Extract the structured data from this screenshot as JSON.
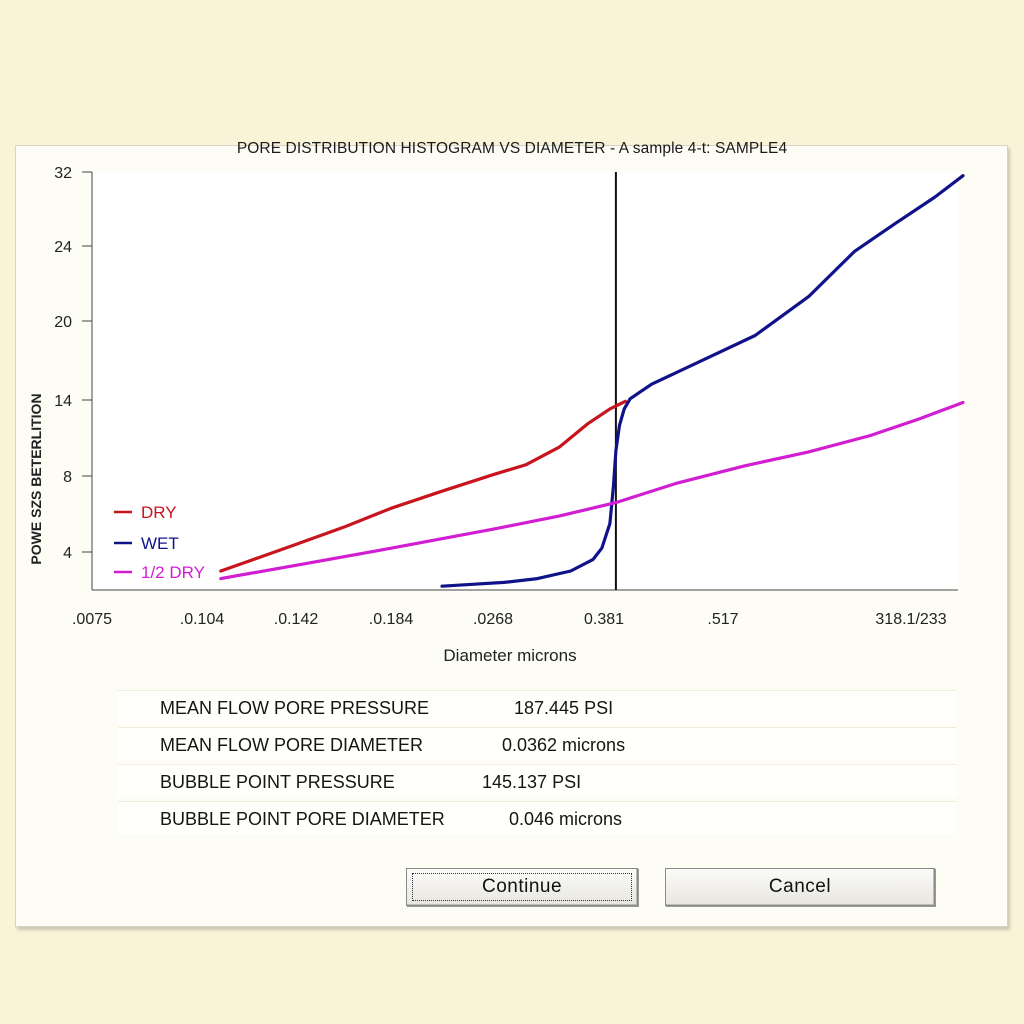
{
  "chart_data": {
    "type": "line",
    "title": "PORE DISTRIBUTION HISTOGRAM VS DIAMETER - A sample 4-t: SAMPLE4",
    "xlabel": "Diameter microns",
    "ylabel": "POWE SZS BETERLITION",
    "x_tick_labels": [
      ".0075",
      ".0.104",
      ".0.142",
      ".0.184",
      ".0268",
      "0.381",
      ".517",
      "318.1/233"
    ],
    "y_tick_labels": [
      "4",
      "8",
      "14",
      "20",
      "24",
      "32"
    ],
    "y_tick_values": [
      4,
      8,
      14,
      20,
      24,
      32
    ],
    "x_index_range": [
      0,
      7
    ],
    "ylim": [
      2,
      32
    ],
    "x_axis_note": "x positions are given as fractional index positions between the printed tick labels",
    "marker_line_x": 5.1,
    "legend": [
      {
        "name": "DRY",
        "color": "#c8141e"
      },
      {
        "name": "WET",
        "color": "#10128a"
      },
      {
        "name": "1/2 DRY",
        "color": "#d21ed2"
      }
    ],
    "series": [
      {
        "name": "DRY",
        "color": "#c8141e",
        "points": [
          [
            1.2,
            3.0
          ],
          [
            1.6,
            3.7
          ],
          [
            2.0,
            4.4
          ],
          [
            2.5,
            5.3
          ],
          [
            3.0,
            6.3
          ],
          [
            3.5,
            7.2
          ],
          [
            4.0,
            8.1
          ],
          [
            4.3,
            8.9
          ],
          [
            4.6,
            10.3
          ],
          [
            4.85,
            12.1
          ],
          [
            5.05,
            13.3
          ],
          [
            5.18,
            13.9
          ]
        ]
      },
      {
        "name": "WET",
        "color": "#10128a",
        "points": [
          [
            3.5,
            2.2
          ],
          [
            3.8,
            2.3
          ],
          [
            4.1,
            2.4
          ],
          [
            4.4,
            2.6
          ],
          [
            4.7,
            3.0
          ],
          [
            4.9,
            3.6
          ],
          [
            4.98,
            4.2
          ],
          [
            5.05,
            5.5
          ],
          [
            5.08,
            7.5
          ],
          [
            5.1,
            10.0
          ],
          [
            5.13,
            12.0
          ],
          [
            5.17,
            13.3
          ],
          [
            5.22,
            14.1
          ],
          [
            5.4,
            15.2
          ],
          [
            5.8,
            16.9
          ],
          [
            6.3,
            18.9
          ],
          [
            6.8,
            21.3
          ],
          [
            7.3,
            23.7
          ],
          [
            7.8,
            26.4
          ],
          [
            8.3,
            29.3
          ],
          [
            8.65,
            31.6
          ]
        ]
      },
      {
        "name": "1/2 DRY",
        "color": "#d21ed2",
        "points": [
          [
            1.2,
            2.6
          ],
          [
            2.0,
            3.3
          ],
          [
            3.0,
            4.2
          ],
          [
            4.0,
            5.2
          ],
          [
            4.6,
            5.9
          ],
          [
            5.1,
            6.6
          ],
          [
            5.6,
            7.6
          ],
          [
            6.2,
            8.8
          ],
          [
            6.8,
            9.9
          ],
          [
            7.5,
            11.2
          ],
          [
            8.1,
            12.5
          ],
          [
            8.65,
            13.8
          ]
        ]
      }
    ]
  },
  "stats": [
    {
      "label": "MEAN FLOW PORE PRESSURE",
      "value": "187.445  PSI"
    },
    {
      "label": "MEAN FLOW PORE DIAMETER",
      "value": "0.0362  microns"
    },
    {
      "label": "BUBBLE POINT PRESSURE",
      "value": "145.137  PSI"
    },
    {
      "label": "BUBBLE POINT PORE DIAMETER",
      "value": "0.046  microns"
    }
  ],
  "buttons": {
    "continue_label": "Continue",
    "cancel_label": "Cancel"
  }
}
